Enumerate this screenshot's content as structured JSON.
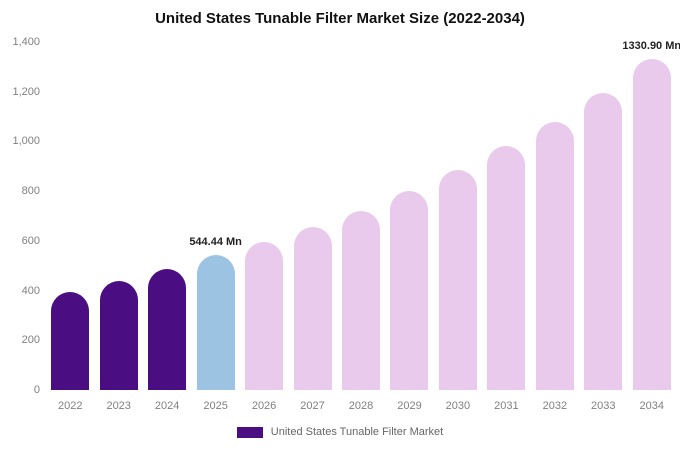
{
  "legend": {
    "label": "United States Tunable Filter Market",
    "swatch_color": "#4a0d82"
  },
  "chart_data": {
    "type": "bar",
    "title": "United States Tunable Filter Market Size (2022-2034)",
    "unit": "Mn",
    "categories": [
      "2022",
      "2023",
      "2024",
      "2025",
      "2026",
      "2027",
      "2028",
      "2029",
      "2030",
      "2031",
      "2032",
      "2033",
      "2034"
    ],
    "values": [
      395,
      440,
      485,
      544.44,
      595,
      655,
      720,
      800,
      885,
      980,
      1080,
      1195,
      1330.9
    ],
    "bar_colors": [
      "#4a0d82",
      "#4a0d82",
      "#4a0d82",
      "#9cc4e2",
      "#e9c9ec",
      "#e9c9ec",
      "#e9c9ec",
      "#e9c9ec",
      "#e9c9ec",
      "#e9c9ec",
      "#e9c9ec",
      "#e9c9ec",
      "#e9c9ec"
    ],
    "data_labels": [
      {
        "category": "2025",
        "text": "544.44 Mn"
      },
      {
        "category": "2034",
        "text": "1330.90 Mn"
      }
    ],
    "xlabel": "",
    "ylabel": "",
    "ylim": [
      0,
      1400
    ],
    "yticks": [
      "0",
      "200",
      "400",
      "600",
      "800",
      "1,000",
      "1,200",
      "1,400"
    ],
    "grid": false,
    "legend_position": "bottom",
    "legend_entries": [
      "United States Tunable Filter Market"
    ]
  }
}
